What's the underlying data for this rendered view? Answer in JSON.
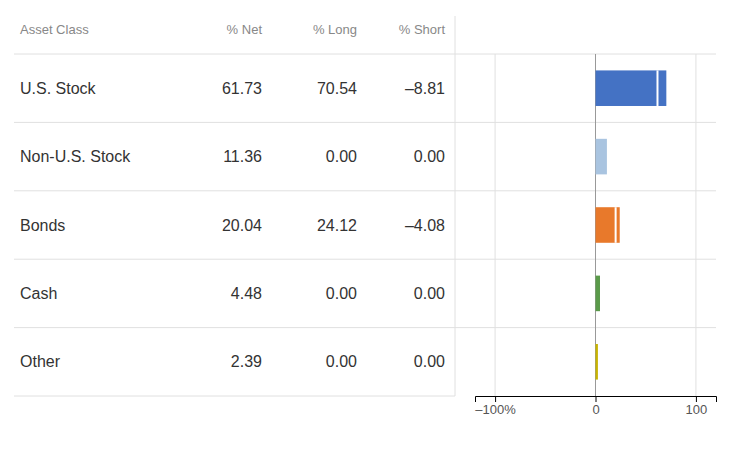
{
  "chart_data": {
    "type": "bar",
    "orientation": "horizontal",
    "ylabel": "Asset Class",
    "categories": [
      "U.S. Stock",
      "Non-U.S. Stock",
      "Bonds",
      "Cash",
      "Other"
    ],
    "colors": [
      "#4472c4",
      "#a9c4e0",
      "#e8792b",
      "#5a9a4a",
      "#c8b400"
    ],
    "series": [
      {
        "name": "% Net",
        "values": [
          61.73,
          11.36,
          20.04,
          4.48,
          2.39
        ],
        "value_labels": [
          "61.73",
          "11.36",
          "20.04",
          "4.48",
          "2.39"
        ]
      },
      {
        "name": "% Long",
        "values": [
          70.54,
          0.0,
          24.12,
          0.0,
          0.0
        ],
        "value_labels": [
          "70.54",
          "0.00",
          "24.12",
          "0.00",
          "0.00"
        ]
      },
      {
        "name": "% Short",
        "values": [
          -8.81,
          0.0,
          -4.08,
          0.0,
          0.0
        ],
        "value_labels": [
          "–8.81",
          "0.00",
          "–4.08",
          "0.00",
          "0.00"
        ]
      }
    ],
    "xlim": [
      -120,
      120
    ],
    "xticks": [
      {
        "value": -100,
        "label": "–100%"
      },
      0,
      100
    ],
    "grid": true
  }
}
